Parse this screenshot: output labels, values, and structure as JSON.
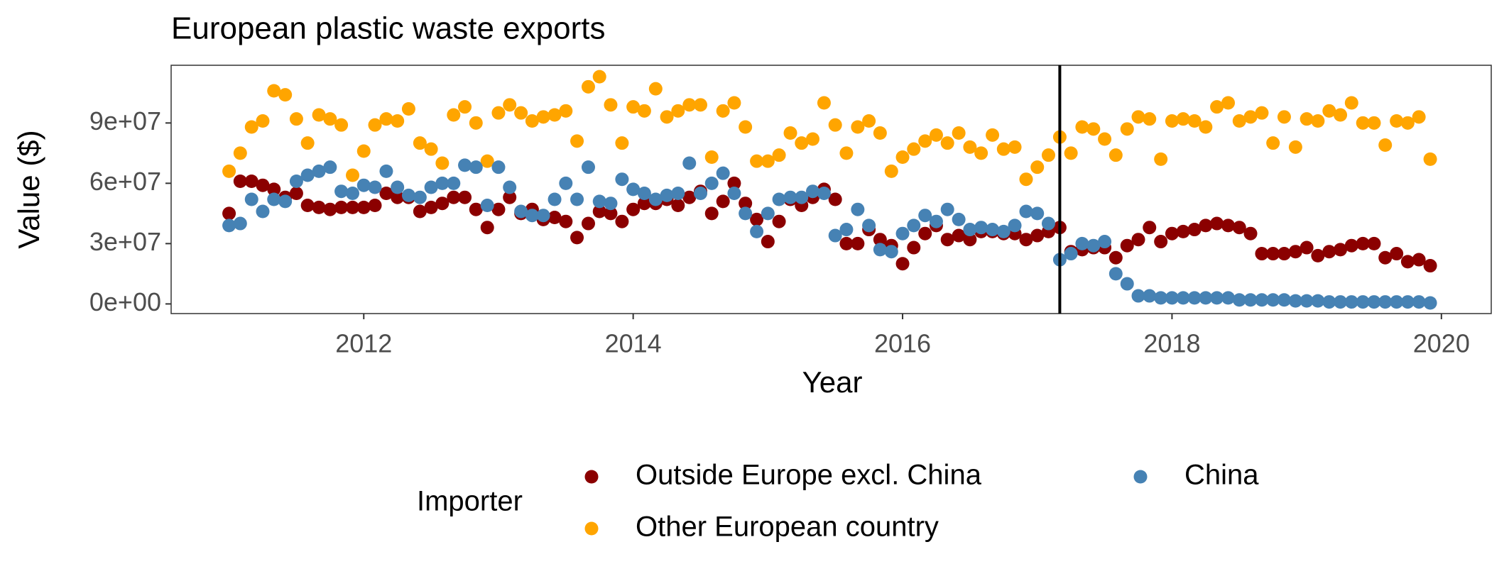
{
  "chart_data": {
    "type": "scatter",
    "title": "European plastic waste exports",
    "x_label": "Year",
    "y_label": "Value ($)",
    "legend_title": "Importer",
    "legend_position": "bottom",
    "xlim": [
      2010.57,
      2020.37
    ],
    "xticks": [
      2012,
      2014,
      2016,
      2018,
      2020
    ],
    "ylim": [
      -4800000.0,
      118700000.0
    ],
    "yticks": [
      {
        "value": 0,
        "label": "0e+00"
      },
      {
        "value": 30000000,
        "label": "3e+07"
      },
      {
        "value": 60000000,
        "label": "6e+07"
      },
      {
        "value": 90000000,
        "label": "9e+07"
      }
    ],
    "grid": false,
    "vline": 2017.167,
    "x": [
      2011,
      2011.083,
      2011.167,
      2011.25,
      2011.333,
      2011.417,
      2011.5,
      2011.583,
      2011.667,
      2011.75,
      2011.833,
      2011.917,
      2012,
      2012.083,
      2012.167,
      2012.25,
      2012.333,
      2012.417,
      2012.5,
      2012.583,
      2012.667,
      2012.75,
      2012.833,
      2012.917,
      2013,
      2013.083,
      2013.167,
      2013.25,
      2013.333,
      2013.417,
      2013.5,
      2013.583,
      2013.667,
      2013.75,
      2013.833,
      2013.917,
      2014,
      2014.083,
      2014.167,
      2014.25,
      2014.333,
      2014.417,
      2014.5,
      2014.583,
      2014.667,
      2014.75,
      2014.833,
      2014.917,
      2015,
      2015.083,
      2015.167,
      2015.25,
      2015.333,
      2015.417,
      2015.5,
      2015.583,
      2015.667,
      2015.75,
      2015.833,
      2015.917,
      2016,
      2016.083,
      2016.167,
      2016.25,
      2016.333,
      2016.417,
      2016.5,
      2016.583,
      2016.667,
      2016.75,
      2016.833,
      2016.917,
      2017,
      2017.083,
      2017.167,
      2017.25,
      2017.333,
      2017.417,
      2017.5,
      2017.583,
      2017.667,
      2017.75,
      2017.833,
      2017.917,
      2018,
      2018.083,
      2018.167,
      2018.25,
      2018.333,
      2018.417,
      2018.5,
      2018.583,
      2018.667,
      2018.75,
      2018.833,
      2018.917,
      2019,
      2019.083,
      2019.167,
      2019.25,
      2019.333,
      2019.417,
      2019.5,
      2019.583,
      2019.667,
      2019.75,
      2019.833,
      2019.917
    ],
    "series": [
      {
        "name": "Outside Europe excl. China",
        "color": "#8b0000",
        "values": [
          45000000.0,
          61000000.0,
          61000000.0,
          59000000.0,
          57000000.0,
          53000000.0,
          55000000.0,
          49000000.0,
          48000000.0,
          47000000.0,
          48000000.0,
          48000000.0,
          48000000.0,
          49000000.0,
          55000000.0,
          53000000.0,
          53000000.0,
          46000000.0,
          48000000.0,
          50000000.0,
          53000000.0,
          53000000.0,
          47000000.0,
          38000000.0,
          47000000.0,
          53000000.0,
          45000000.0,
          47000000.0,
          42000000.0,
          43000000.0,
          41000000.0,
          33000000.0,
          40000000.0,
          46000000.0,
          45000000.0,
          41000000.0,
          47000000.0,
          50000000.0,
          50000000.0,
          52000000.0,
          49000000.0,
          53000000.0,
          56000000.0,
          45000000.0,
          51000000.0,
          60000000.0,
          50000000.0,
          42000000.0,
          31000000.0,
          41000000.0,
          52000000.0,
          49000000.0,
          53000000.0,
          57000000.0,
          52000000.0,
          30000000.0,
          30000000.0,
          37000000.0,
          32000000.0,
          29000000.0,
          20000000.0,
          28000000.0,
          35000000.0,
          39000000.0,
          32000000.0,
          34000000.0,
          32000000.0,
          36000000.0,
          36000000.0,
          35000000.0,
          35000000.0,
          32000000.0,
          34000000.0,
          36000000.0,
          38000000.0,
          26000000.0,
          27000000.0,
          28000000.0,
          28000000.0,
          23000000.0,
          29000000.0,
          32000000.0,
          38000000.0,
          31000000.0,
          35000000.0,
          36000000.0,
          37000000.0,
          39000000.0,
          40000000.0,
          39000000.0,
          38000000.0,
          35000000.0,
          25000000.0,
          25000000.0,
          25000000.0,
          26000000.0,
          28000000.0,
          24000000.0,
          26000000.0,
          27000000.0,
          29000000.0,
          30000000.0,
          30000000.0,
          23000000.0,
          25000000.0,
          21000000.0,
          22000000.0,
          19000000.0
        ]
      },
      {
        "name": "Other European country",
        "color": "#ffa500",
        "values": [
          66000000.0,
          75000000.0,
          88000000.0,
          91000000.0,
          106000000.0,
          104000000.0,
          92000000.0,
          80000000.0,
          94000000.0,
          92000000.0,
          89000000.0,
          64000000.0,
          76000000.0,
          89000000.0,
          92000000.0,
          91000000.0,
          97000000.0,
          80000000.0,
          77000000.0,
          70000000.0,
          94000000.0,
          98000000.0,
          90000000.0,
          71000000.0,
          95000000.0,
          99000000.0,
          95000000.0,
          91000000.0,
          93000000.0,
          94000000.0,
          96000000.0,
          81000000.0,
          108000000.0,
          113000000.0,
          99000000.0,
          80000000.0,
          98000000.0,
          96000000.0,
          107000000.0,
          93000000.0,
          96000000.0,
          99000000.0,
          99000000.0,
          73000000.0,
          96000000.0,
          100000000.0,
          88000000.0,
          71000000.0,
          71000000.0,
          74000000.0,
          85000000.0,
          80000000.0,
          82000000.0,
          100000000.0,
          89000000.0,
          75000000.0,
          88000000.0,
          91000000.0,
          85000000.0,
          66000000.0,
          73000000.0,
          77000000.0,
          81000000.0,
          84000000.0,
          80000000.0,
          85000000.0,
          78000000.0,
          75000000.0,
          84000000.0,
          77000000.0,
          78000000.0,
          62000000.0,
          68000000.0,
          74000000.0,
          83000000.0,
          75000000.0,
          88000000.0,
          87000000.0,
          82000000.0,
          74000000.0,
          87000000.0,
          93000000.0,
          92000000.0,
          72000000.0,
          91000000.0,
          92000000.0,
          91000000.0,
          88000000.0,
          98000000.0,
          100000000.0,
          91000000.0,
          93000000.0,
          95000000.0,
          80000000.0,
          93000000.0,
          78000000.0,
          92000000.0,
          91000000.0,
          96000000.0,
          94000000.0,
          100000000.0,
          90000000.0,
          90000000.0,
          79000000.0,
          91000000.0,
          90000000.0,
          93000000.0,
          72000000.0
        ]
      },
      {
        "name": "China",
        "color": "#4682b4",
        "values": [
          39000000.0,
          40000000.0,
          52000000.0,
          46000000.0,
          52000000.0,
          51000000.0,
          61000000.0,
          64000000.0,
          66000000.0,
          68000000.0,
          56000000.0,
          55000000.0,
          59000000.0,
          58000000.0,
          66000000.0,
          58000000.0,
          54000000.0,
          53000000.0,
          58000000.0,
          60000000.0,
          60000000.0,
          69000000.0,
          68000000.0,
          49000000.0,
          68000000.0,
          58000000.0,
          46000000.0,
          44000000.0,
          44000000.0,
          52000000.0,
          60000000.0,
          52000000.0,
          68000000.0,
          51000000.0,
          50000000.0,
          62000000.0,
          57000000.0,
          55000000.0,
          52000000.0,
          54000000.0,
          55000000.0,
          70000000.0,
          55000000.0,
          60000000.0,
          65000000.0,
          55000000.0,
          45000000.0,
          36000000.0,
          45000000.0,
          52000000.0,
          53000000.0,
          53000000.0,
          56000000.0,
          55000000.0,
          34000000.0,
          37000000.0,
          47000000.0,
          39000000.0,
          27000000.0,
          26000000.0,
          35000000.0,
          39000000.0,
          44000000.0,
          41000000.0,
          47000000.0,
          42000000.0,
          37000000.0,
          38000000.0,
          37000000.0,
          36000000.0,
          39000000.0,
          46000000.0,
          45000000.0,
          40000000.0,
          22000000.0,
          25000000.0,
          30000000.0,
          29000000.0,
          31000000.0,
          15000000.0,
          10000000.0,
          4000000.0,
          4000000.0,
          3000000.0,
          3000000.0,
          3000000.0,
          3000000.0,
          3000000.0,
          3000000.0,
          3000000.0,
          2000000.0,
          2000000.0,
          2000000.0,
          2000000.0,
          2000000.0,
          1500000.0,
          1500000.0,
          1500000.0,
          1000000.0,
          1000000.0,
          1000000.0,
          1000000.0,
          1000000.0,
          1000000.0,
          1000000.0,
          1000000.0,
          1000000.0,
          500000.0
        ]
      }
    ]
  }
}
